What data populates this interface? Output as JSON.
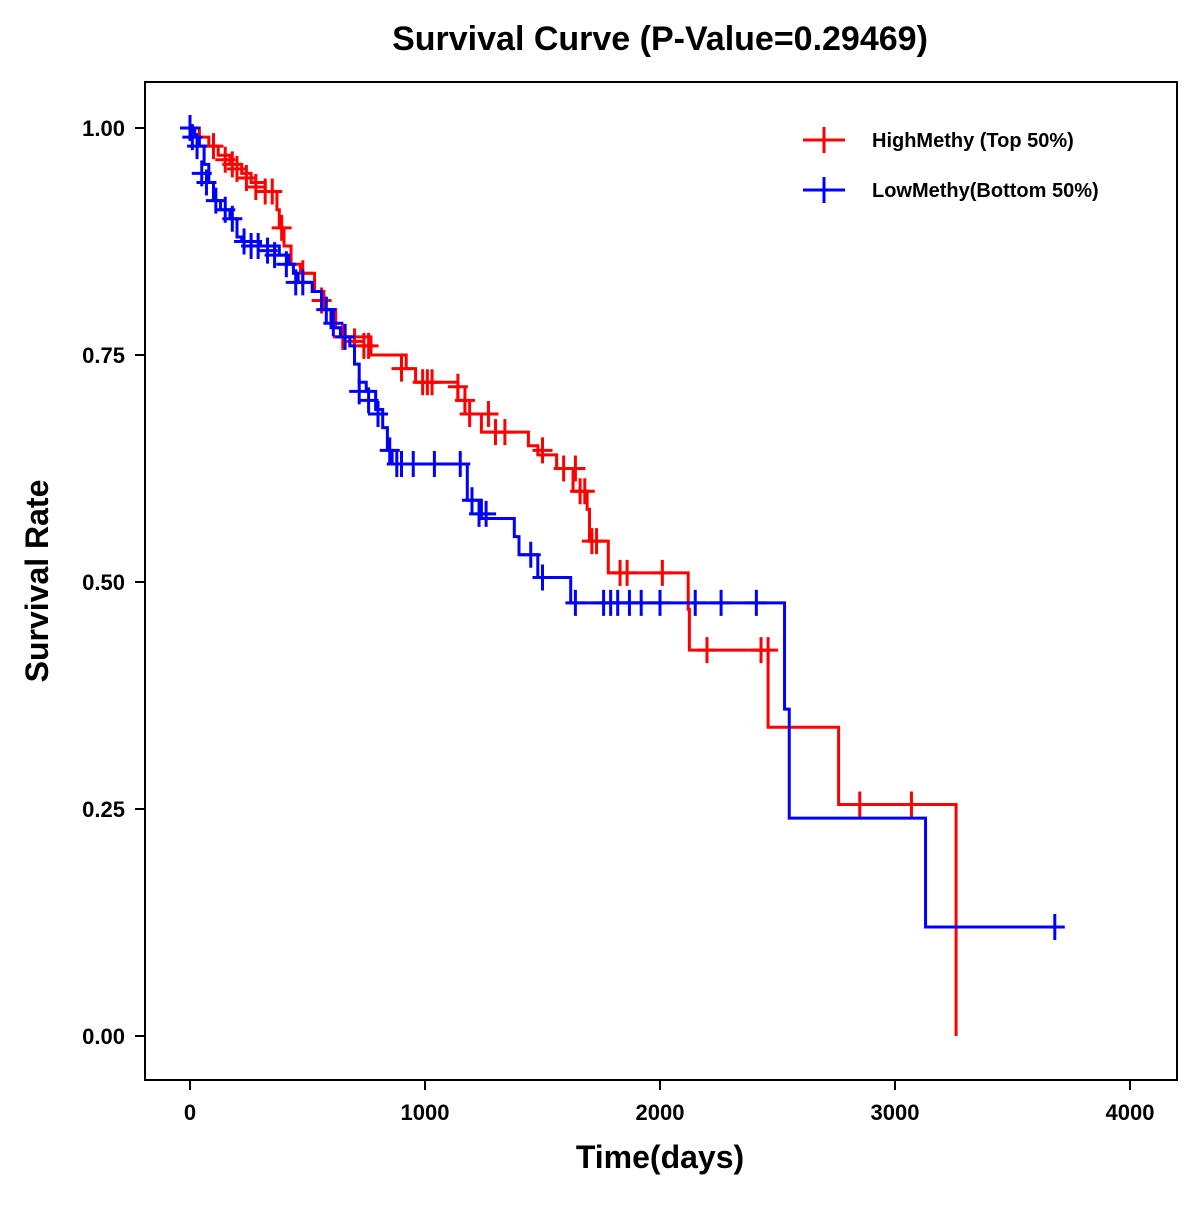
{
  "chart_data": {
    "type": "line",
    "subtype": "kaplan-meier step",
    "title": "Survival Curve (P-Value=0.29469)",
    "xlabel": "Time(days)",
    "ylabel": "Survival Rate",
    "xlim": [
      -200,
      4200
    ],
    "ylim": [
      -0.05,
      1.05
    ],
    "xticks": [
      0,
      1000,
      2000,
      3000,
      4000
    ],
    "xtick_labels": [
      "0",
      "1000",
      "2000",
      "3000",
      "4000"
    ],
    "yticks": [
      0,
      0.25,
      0.5,
      0.75,
      1
    ],
    "ytick_labels": [
      "0.00",
      "0.25",
      "0.50",
      "0.75",
      "1.00"
    ],
    "grid": false,
    "legend_position": "top-right",
    "series": [
      {
        "name": "HighMethy (Top 50%)",
        "color": "#ff0000",
        "end": 3260,
        "steps": [
          [
            0,
            1
          ],
          [
            40,
            0.99
          ],
          [
            80,
            0.98
          ],
          [
            120,
            0.97
          ],
          [
            170,
            0.96
          ],
          [
            220,
            0.95
          ],
          [
            260,
            0.94
          ],
          [
            320,
            0.93
          ],
          [
            370,
            0.91
          ],
          [
            380,
            0.89
          ],
          [
            400,
            0.87
          ],
          [
            430,
            0.85
          ],
          [
            470,
            0.84
          ],
          [
            530,
            0.82
          ],
          [
            570,
            0.8
          ],
          [
            620,
            0.78
          ],
          [
            660,
            0.77
          ],
          [
            770,
            0.75
          ],
          [
            920,
            0.735
          ],
          [
            960,
            0.72
          ],
          [
            1140,
            0.7
          ],
          [
            1170,
            0.685
          ],
          [
            1240,
            0.665
          ],
          [
            1440,
            0.65
          ],
          [
            1480,
            0.64
          ],
          [
            1560,
            0.625
          ],
          [
            1630,
            0.6
          ],
          [
            1690,
            0.58
          ],
          [
            1700,
            0.545
          ],
          [
            1780,
            0.51
          ],
          [
            2120,
            0.47
          ],
          [
            2125,
            0.425
          ],
          [
            2460,
            0.34
          ],
          [
            2760,
            0.255
          ],
          [
            3260,
            0.0
          ]
        ],
        "censored": [
          [
            100,
            0.98
          ],
          [
            150,
            0.965
          ],
          [
            180,
            0.96
          ],
          [
            200,
            0.955
          ],
          [
            240,
            0.945
          ],
          [
            280,
            0.935
          ],
          [
            320,
            0.93
          ],
          [
            350,
            0.93
          ],
          [
            390,
            0.89
          ],
          [
            480,
            0.84
          ],
          [
            560,
            0.81
          ],
          [
            650,
            0.77
          ],
          [
            700,
            0.765
          ],
          [
            740,
            0.76
          ],
          [
            760,
            0.76
          ],
          [
            900,
            0.735
          ],
          [
            990,
            0.72
          ],
          [
            1010,
            0.72
          ],
          [
            1030,
            0.72
          ],
          [
            1140,
            0.715
          ],
          [
            1170,
            0.7
          ],
          [
            1190,
            0.685
          ],
          [
            1270,
            0.685
          ],
          [
            1300,
            0.665
          ],
          [
            1340,
            0.665
          ],
          [
            1500,
            0.645
          ],
          [
            1590,
            0.625
          ],
          [
            1640,
            0.625
          ],
          [
            1660,
            0.6
          ],
          [
            1680,
            0.6
          ],
          [
            1710,
            0.545
          ],
          [
            1730,
            0.545
          ],
          [
            1830,
            0.51
          ],
          [
            1860,
            0.51
          ],
          [
            2010,
            0.51
          ],
          [
            2200,
            0.425
          ],
          [
            2430,
            0.425
          ],
          [
            2460,
            0.425
          ],
          [
            2850,
            0.255
          ],
          [
            3070,
            0.255
          ]
        ]
      },
      {
        "name": "LowMethy(Bottom 50%)",
        "color": "#0000ff",
        "end": 3720,
        "steps": [
          [
            0,
            1
          ],
          [
            20,
            0.99
          ],
          [
            40,
            0.98
          ],
          [
            60,
            0.96
          ],
          [
            80,
            0.94
          ],
          [
            100,
            0.92
          ],
          [
            130,
            0.91
          ],
          [
            170,
            0.9
          ],
          [
            200,
            0.88
          ],
          [
            220,
            0.875
          ],
          [
            300,
            0.87
          ],
          [
            380,
            0.86
          ],
          [
            420,
            0.85
          ],
          [
            440,
            0.84
          ],
          [
            460,
            0.83
          ],
          [
            520,
            0.82
          ],
          [
            560,
            0.8
          ],
          [
            600,
            0.78
          ],
          [
            640,
            0.77
          ],
          [
            680,
            0.76
          ],
          [
            700,
            0.74
          ],
          [
            720,
            0.72
          ],
          [
            750,
            0.71
          ],
          [
            790,
            0.69
          ],
          [
            820,
            0.67
          ],
          [
            840,
            0.645
          ],
          [
            860,
            0.63
          ],
          [
            1180,
            0.59
          ],
          [
            1240,
            0.57
          ],
          [
            1380,
            0.55
          ],
          [
            1400,
            0.53
          ],
          [
            1480,
            0.505
          ],
          [
            1620,
            0.477
          ],
          [
            2530,
            0.36
          ],
          [
            2550,
            0.24
          ],
          [
            3130,
            0.12
          ]
        ],
        "censored": [
          [
            0,
            1
          ],
          [
            10,
            0.99
          ],
          [
            30,
            0.98
          ],
          [
            50,
            0.95
          ],
          [
            70,
            0.94
          ],
          [
            110,
            0.92
          ],
          [
            150,
            0.91
          ],
          [
            180,
            0.9
          ],
          [
            230,
            0.875
          ],
          [
            260,
            0.87
          ],
          [
            290,
            0.87
          ],
          [
            330,
            0.865
          ],
          [
            360,
            0.86
          ],
          [
            410,
            0.85
          ],
          [
            450,
            0.83
          ],
          [
            480,
            0.83
          ],
          [
            580,
            0.8
          ],
          [
            610,
            0.785
          ],
          [
            660,
            0.77
          ],
          [
            720,
            0.71
          ],
          [
            760,
            0.7
          ],
          [
            800,
            0.685
          ],
          [
            850,
            0.645
          ],
          [
            880,
            0.63
          ],
          [
            900,
            0.63
          ],
          [
            950,
            0.63
          ],
          [
            1040,
            0.63
          ],
          [
            1150,
            0.63
          ],
          [
            1200,
            0.59
          ],
          [
            1230,
            0.575
          ],
          [
            1260,
            0.575
          ],
          [
            1450,
            0.53
          ],
          [
            1500,
            0.505
          ],
          [
            1640,
            0.477
          ],
          [
            1760,
            0.477
          ],
          [
            1790,
            0.477
          ],
          [
            1820,
            0.477
          ],
          [
            1870,
            0.477
          ],
          [
            1920,
            0.477
          ],
          [
            2000,
            0.477
          ],
          [
            2150,
            0.477
          ],
          [
            2260,
            0.477
          ],
          [
            2410,
            0.477
          ],
          [
            3680,
            0.12
          ]
        ]
      }
    ]
  }
}
